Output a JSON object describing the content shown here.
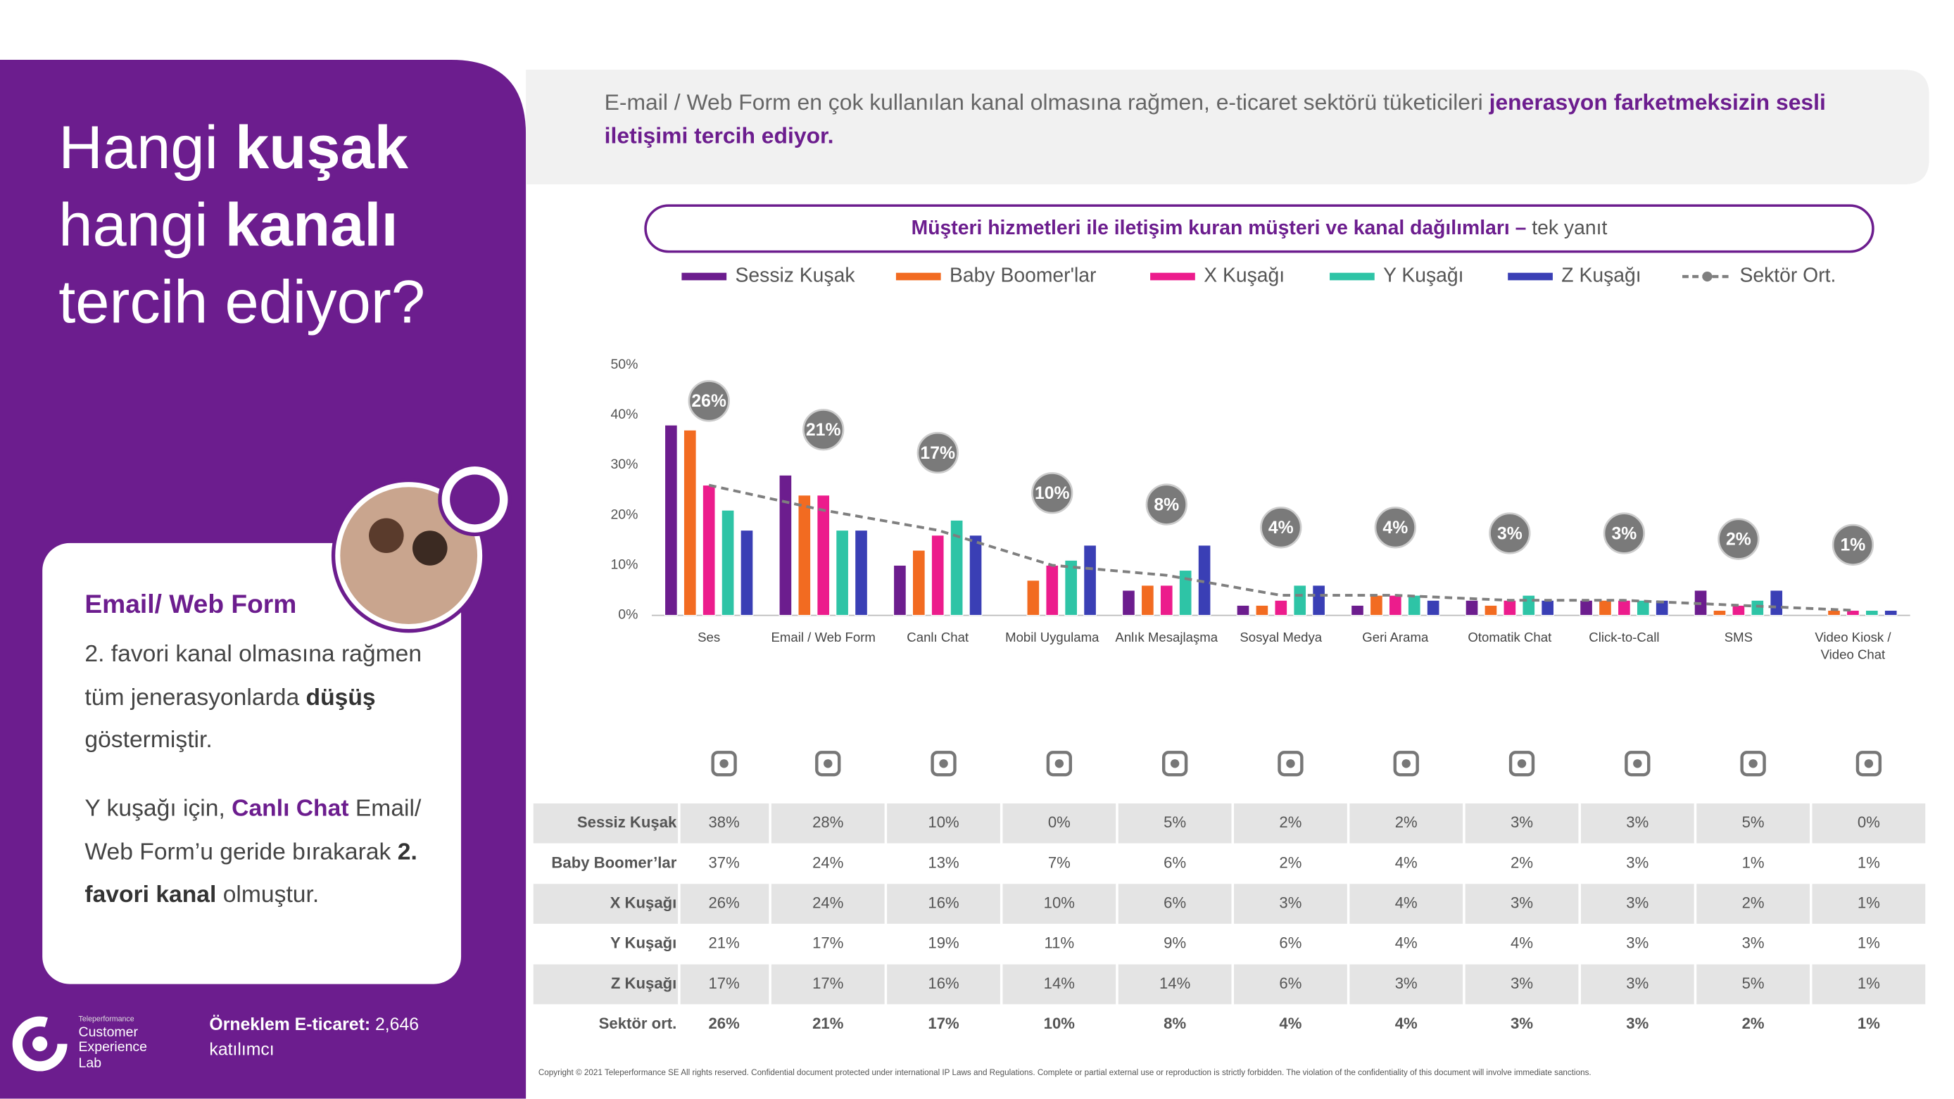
{
  "left_panel": {
    "title_lines": [
      [
        "Hangi",
        "kuşak"
      ],
      [
        "hangi",
        "kanalı"
      ],
      [
        "tercih ediyor?"
      ]
    ],
    "card": {
      "heading": "Email/ Web Form",
      "paragraph_1": [
        "2. favori kanal olmasına rağmen tüm jenerasyonlarda",
        "düşüş",
        "göstermiştir."
      ],
      "paragraph_2": [
        "Y kuşağı için,",
        "Canlı Chat",
        "Email/ Web Form’u geride bırakarak",
        "2. favori kanal",
        "olmuştur."
      ]
    },
    "logo": {
      "brand": "Teleperformance",
      "lines": [
        "Customer",
        "Experience",
        "Lab"
      ]
    },
    "sample": {
      "label": "Örneklem E-ticaret:",
      "value": "2,646 katılımcı"
    }
  },
  "header": {
    "text": "E-mail / Web Form en çok kullanılan kanal olmasına rağmen, e-ticaret sektörü tüketicileri",
    "highlight": "jenerasyon farketmeksizin sesli iletişimi tercih ediyor."
  },
  "chart_data": {
    "type": "bar",
    "title": "Müşteri hizmetleri ile iletişim kuran müşteri ve kanal dağılımları –",
    "subtitle": "tek yanıt",
    "categories": [
      "Ses",
      "Email / Web Form",
      "Canlı Chat",
      "Mobil Uygulama",
      "Anlık Mesajlaşma",
      "Sosyal Medya",
      "Geri Arama",
      "Otomatik Chat",
      "Click-to-Call",
      "SMS",
      "Video Kiosk / Video Chat"
    ],
    "series": [
      {
        "name": "Sessiz Kuşak",
        "color": "#6c1d8e",
        "values": [
          38,
          28,
          10,
          0,
          5,
          2,
          2,
          3,
          3,
          5,
          0
        ],
        "value_labels": [
          "38%",
          "28%",
          "10%",
          "0%",
          "5%",
          "2%",
          "2%",
          "3%",
          "3%",
          "5%",
          "0%"
        ]
      },
      {
        "name": "Baby Boomer'lar",
        "color": "#f26b21",
        "values": [
          37,
          24,
          13,
          7,
          6,
          2,
          4,
          2,
          3,
          1,
          1
        ],
        "value_labels": [
          "37%",
          "24%",
          "13%",
          "7%",
          "6%",
          "2%",
          "4%",
          "2%",
          "3%",
          "1%",
          "1%"
        ]
      },
      {
        "name": "X Kuşağı",
        "color": "#ec1c8c",
        "values": [
          26,
          24,
          16,
          10,
          6,
          3,
          4,
          3,
          3,
          2,
          1
        ],
        "value_labels": [
          "26%",
          "24%",
          "16%",
          "10%",
          "6%",
          "3%",
          "4%",
          "3%",
          "3%",
          "2%",
          "1%"
        ]
      },
      {
        "name": "Y Kuşağı",
        "color": "#2ec4a6",
        "values": [
          21,
          17,
          19,
          11,
          9,
          6,
          4,
          4,
          3,
          3,
          1
        ],
        "value_labels": [
          "21%",
          "17%",
          "19%",
          "11%",
          "9%",
          "6%",
          "4%",
          "4%",
          "3%",
          "3%",
          "1%"
        ]
      },
      {
        "name": "Z Kuşağı",
        "color": "#3a3fb5",
        "values": [
          17,
          17,
          16,
          14,
          14,
          6,
          3,
          3,
          3,
          5,
          1
        ],
        "value_labels": [
          "17%",
          "17%",
          "16%",
          "14%",
          "14%",
          "6%",
          "3%",
          "3%",
          "3%",
          "5%",
          "1%"
        ]
      },
      {
        "name": "Sektör Ort.",
        "type": "line",
        "color": "#7f7f7f",
        "values": [
          26,
          21,
          17,
          10,
          8,
          4,
          4,
          3,
          3,
          2,
          1
        ],
        "value_labels": [
          "26%",
          "21%",
          "17%",
          "10%",
          "8%",
          "4%",
          "4%",
          "3%",
          "3%",
          "2%",
          "1%"
        ]
      }
    ],
    "ylim": [
      0,
      50
    ],
    "yticks": [
      {
        "value": 0,
        "label": "0%"
      },
      {
        "value": 10,
        "label": "10%"
      },
      {
        "value": 20,
        "label": "20%"
      },
      {
        "value": 30,
        "label": "30%"
      },
      {
        "value": 40,
        "label": "40%"
      },
      {
        "value": 50,
        "label": "50%"
      }
    ],
    "grid": false
  },
  "table": {
    "row_labels": [
      "Sessiz Kuşak",
      "Baby Boomer’lar",
      "X Kuşağı",
      "Y Kuşağı",
      "Z Kuşağı",
      "Sektör ort."
    ]
  },
  "footer": {
    "copyright": "Copyright © 2021 Teleperformance SE All rights reserved. Confidential document protected under international IP Laws and Regulations. Complete or partial external use or reproduction is strictly forbidden. The violation of the confidentiality of this document will involve immediate sanctions."
  }
}
